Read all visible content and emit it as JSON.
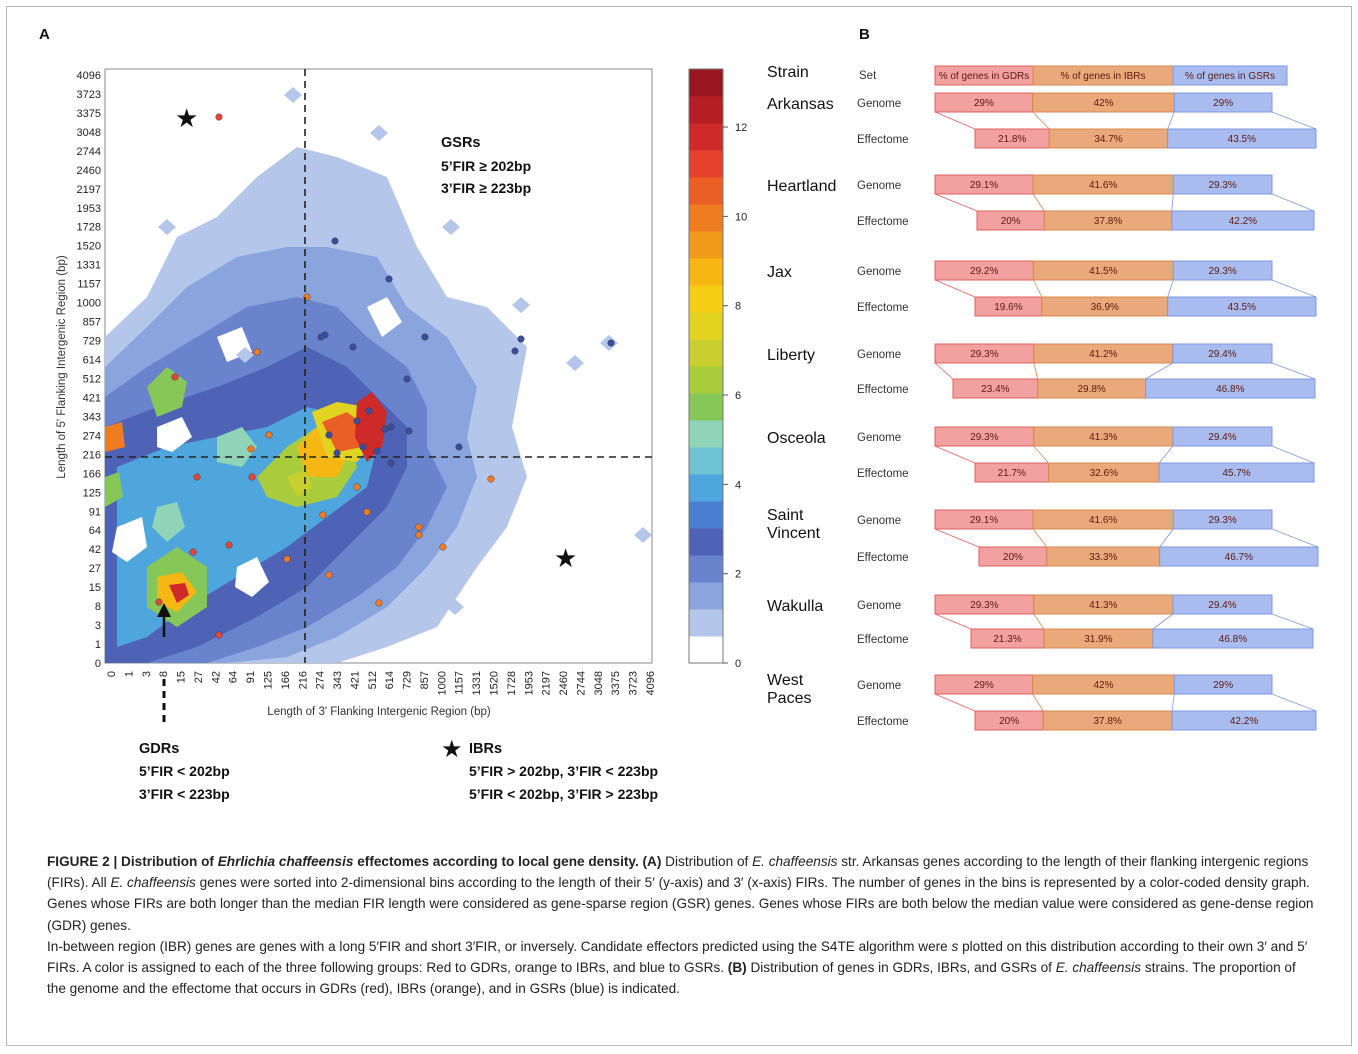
{
  "panel_a": {
    "letter": "A",
    "x_axis_title": "Length of 3' Flanking Intergenic Region (bp)",
    "y_axis_title": "Length of 5' Flanking Intergenic Region (bp)",
    "x_ticks": [
      "0",
      "1",
      "3",
      "8",
      "15",
      "27",
      "42",
      "64",
      "91",
      "125",
      "166",
      "216",
      "274",
      "343",
      "421",
      "512",
      "614",
      "729",
      "857",
      "1000",
      "1157",
      "1331",
      "1520",
      "1728",
      "1953",
      "2197",
      "2460",
      "2744",
      "3048",
      "3375",
      "3723",
      "4096"
    ],
    "y_ticks": [
      "0",
      "1",
      "3",
      "8",
      "15",
      "27",
      "42",
      "64",
      "91",
      "125",
      "166",
      "216",
      "274",
      "343",
      "421",
      "512",
      "614",
      "729",
      "857",
      "1000",
      "1157",
      "1331",
      "1520",
      "1728",
      "1953",
      "2197",
      "2460",
      "2744",
      "3048",
      "3375",
      "3723",
      "4096"
    ],
    "colorbar_ticks": [
      "0",
      "2",
      "4",
      "6",
      "8",
      "10",
      "12"
    ],
    "colorbar_colors": [
      "#ffffff",
      "#b4c6ea",
      "#8aa4dd",
      "#6a83cd",
      "#4f63b6",
      "#4a7ed0",
      "#4ea6dc",
      "#6fc3d2",
      "#8fd4b8",
      "#86c758",
      "#a9cc3d",
      "#c8cf2e",
      "#e3d321",
      "#f6cf15",
      "#f6b614",
      "#f29a1a",
      "#ee7d22",
      "#ea5f25",
      "#e4402a",
      "#cf2a2a",
      "#b51e24",
      "#991820"
    ],
    "gsr_label": "GSRs",
    "gsr_line1": "5’FIR ≥ 202bp",
    "gsr_line2": "3’FIR ≥ 223bp",
    "gdr_label": "GDRs",
    "gdr_line1": "5’FIR < 202bp",
    "gdr_line2": "3’FIR < 223bp",
    "ibr_label": "IBRs",
    "ibr_line1": "5’FIR > 202bp, 3’FIR < 223bp",
    "ibr_line2": "5’FIR < 202bp, 3’FIR > 223bp",
    "star_glyph": "★"
  },
  "panel_b": {
    "letter": "B",
    "strain_header": "Strain",
    "set_header": "Set",
    "header_segments": [
      "% of genes in GDRs",
      "% of genes in IBRs",
      "% of genes in GSRs"
    ],
    "colors": {
      "gdr": "#f2a0a0",
      "gdr_border": "#e06060",
      "ibr": "#eaa97a",
      "ibr_border": "#d98850",
      "gsr": "#a9bcf0",
      "gsr_border": "#7f99e0"
    },
    "strains": [
      {
        "name": "Arkansas",
        "genome": [
          "29%",
          "42%",
          "29%"
        ],
        "genome_v": [
          29,
          42,
          29
        ],
        "effectome": [
          "21.8%",
          "34.7%",
          "43.5%"
        ],
        "effectome_v": [
          21.8,
          34.7,
          43.5
        ]
      },
      {
        "name": "Heartland",
        "genome": [
          "29.1%",
          "41.6%",
          "29.3%"
        ],
        "genome_v": [
          29.1,
          41.6,
          29.3
        ],
        "effectome": [
          "20%",
          "37.8%",
          "42.2%"
        ],
        "effectome_v": [
          20,
          37.8,
          42.2
        ]
      },
      {
        "name": "Jax",
        "genome": [
          "29.2%",
          "41.5%",
          "29.3%"
        ],
        "genome_v": [
          29.2,
          41.5,
          29.3
        ],
        "effectome": [
          "19.6%",
          "36.9%",
          "43.5%"
        ],
        "effectome_v": [
          19.6,
          36.9,
          43.5
        ]
      },
      {
        "name": "Liberty",
        "genome": [
          "29.3%",
          "41.2%",
          "29.4%"
        ],
        "genome_v": [
          29.3,
          41.2,
          29.4
        ],
        "effectome": [
          "23.4%",
          "29.8%",
          "46.8%"
        ],
        "effectome_v": [
          23.4,
          29.8,
          46.8
        ]
      },
      {
        "name": "Osceola",
        "genome": [
          "29.3%",
          "41.3%",
          "29.4%"
        ],
        "genome_v": [
          29.3,
          41.3,
          29.4
        ],
        "effectome": [
          "21.7%",
          "32.6%",
          "45.7%"
        ],
        "effectome_v": [
          21.7,
          32.6,
          45.7
        ]
      },
      {
        "name": "Saint Vincent",
        "name_line1": "Saint",
        "name_line2": "Vincent",
        "genome": [
          "29.1%",
          "41.6%",
          "29.3%"
        ],
        "genome_v": [
          29.1,
          41.6,
          29.3
        ],
        "effectome": [
          "20%",
          "33.3%",
          "46.7%"
        ],
        "effectome_v": [
          20,
          33.3,
          46.7
        ]
      },
      {
        "name": "Wakulla",
        "genome": [
          "29.3%",
          "41.3%",
          "29.4%"
        ],
        "genome_v": [
          29.3,
          41.3,
          29.4
        ],
        "effectome": [
          "21.3%",
          "31.9%",
          "46.8%"
        ],
        "effectome_v": [
          21.3,
          31.9,
          46.8
        ]
      },
      {
        "name": "West Paces",
        "name_line1": "West",
        "name_line2": "Paces",
        "genome": [
          "29%",
          "42%",
          "29%"
        ],
        "genome_v": [
          29,
          42,
          29
        ],
        "effectome": [
          "20%",
          "37.8%",
          "42.2%"
        ],
        "effectome_v": [
          20,
          37.8,
          42.2
        ]
      }
    ],
    "genome_label": "Genome",
    "effectome_label": "Effectome"
  },
  "caption": {
    "label": "FIGURE 2 | Distribution of ",
    "label_italic": "Ehrlichia chaffeensis",
    "label_rest": " effectomes according to local gene density.",
    "a_tag": " (A)",
    "t1": " Distribution of ",
    "t1_i": "E. chaffeensis",
    "t2": " str. Arkansas genes according to the length of their flanking intergenic regions (FIRs). All ",
    "t2_i": "E. chaffeensis",
    "t3": " genes were sorted into 2-dimensional bins according to the length of their 5′ (y-axis) and 3′ (x-axis) FIRs. The number of genes in the bins is represented by a color-coded density graph. Genes whose FIRs are both longer than the median FIR length were considered as gene-sparse region (GSR) genes. Genes whose FIRs are both below the median value were considered as gene-dense region (GDR) genes.",
    "t4": "In-between region (IBR) genes are genes with a long 5′FIR and short 3′FIR, or inversely. Candidate effectors predicted using the S4TE algorithm were ",
    "t4_i": "s",
    "t5": " plotted on this distribution according to their own 3′ and 5′ FIRs. A color is assigned to each of the three following groups: Red to GDRs, orange to IBRs, and blue to GSRs.",
    "b_tag": " (B)",
    "t6": " Distribution of genes in GDRs, IBRs, and GSRs of ",
    "t6_i": "E. chaffeensis",
    "t7": " strains. The proportion of the genome and the effectome that occurs in GDRs (red), IBRs (orange), and in GSRs (blue) is indicated."
  }
}
